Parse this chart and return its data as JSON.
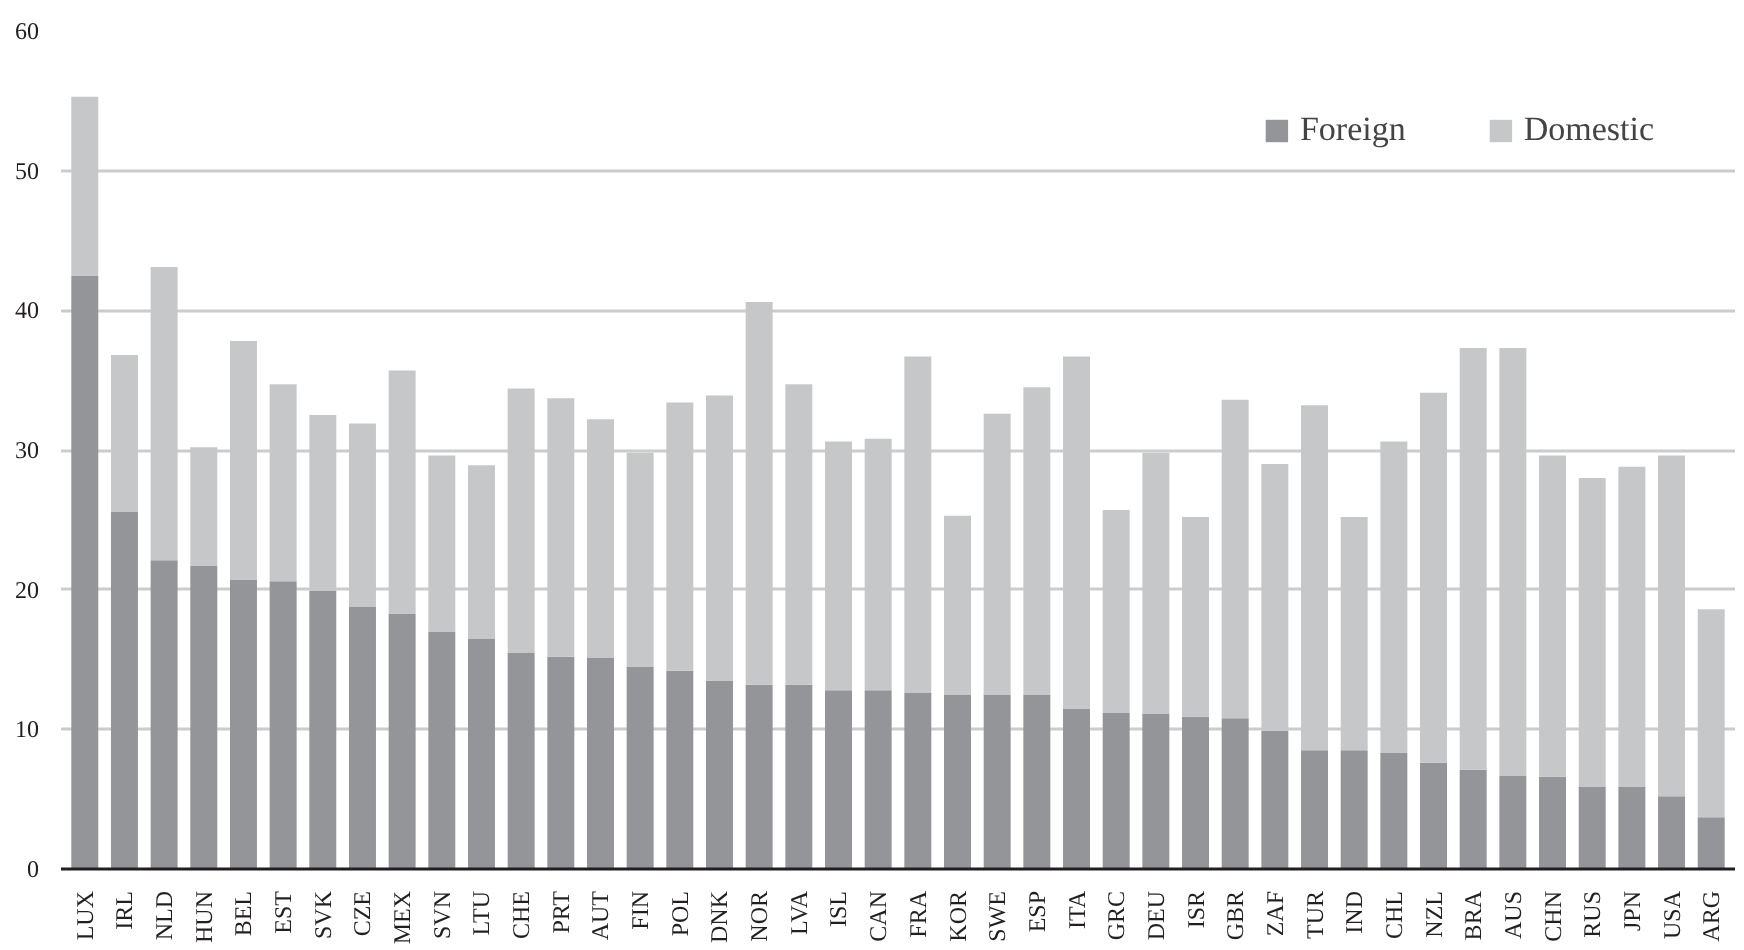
{
  "chart_data": {
    "type": "bar",
    "stacked": true,
    "categories": [
      "LUX",
      "IRL",
      "NLD",
      "HUN",
      "BEL",
      "EST",
      "SVK",
      "CZE",
      "MEX",
      "SVN",
      "LTU",
      "CHE",
      "PRT",
      "AUT",
      "FIN",
      "POL",
      "DNK",
      "NOR",
      "LVA",
      "ISL",
      "CAN",
      "FRA",
      "KOR",
      "SWE",
      "ESP",
      "ITA",
      "GRC",
      "DEU",
      "ISR",
      "GBR",
      "ZAF",
      "TUR",
      "IND",
      "CHL",
      "NZL",
      "BRA",
      "AUS",
      "CHN",
      "RUS",
      "JPN",
      "USA",
      "ARG"
    ],
    "series": [
      {
        "name": "Foreign",
        "color": "#939598",
        "values": [
          42.5,
          25.6,
          22.1,
          21.7,
          20.7,
          20.6,
          19.9,
          18.8,
          18.3,
          17.0,
          16.5,
          15.5,
          15.2,
          15.1,
          14.5,
          14.2,
          13.5,
          13.2,
          13.2,
          12.8,
          12.8,
          12.6,
          12.5,
          12.5,
          12.5,
          11.5,
          11.2,
          11.1,
          10.9,
          10.8,
          9.9,
          8.5,
          8.5,
          8.3,
          7.6,
          7.1,
          6.7,
          6.6,
          5.9,
          5.9,
          5.2,
          3.7
        ]
      },
      {
        "name": "Domestic",
        "color": "#c6c7c8",
        "values": [
          12.8,
          11.2,
          21.0,
          8.5,
          17.1,
          14.1,
          12.6,
          13.1,
          17.4,
          12.6,
          12.4,
          18.9,
          18.5,
          17.1,
          15.3,
          19.2,
          20.4,
          27.4,
          21.5,
          17.8,
          18.0,
          24.1,
          12.8,
          20.1,
          22.0,
          25.2,
          14.5,
          18.7,
          14.3,
          22.8,
          19.1,
          24.7,
          16.7,
          22.3,
          26.5,
          30.2,
          30.6,
          23.0,
          22.1,
          22.9,
          24.4,
          14.9
        ]
      }
    ],
    "ylim": [
      0,
      60
    ],
    "yticks": [
      0,
      10,
      20,
      30,
      40,
      50,
      60
    ],
    "grid": "y",
    "legend": "top right"
  }
}
